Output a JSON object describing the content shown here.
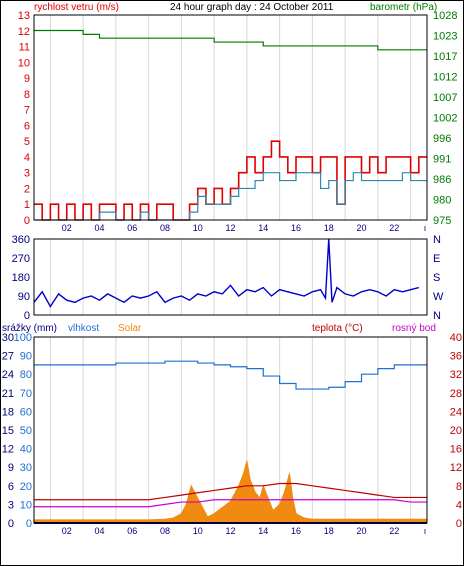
{
  "title": "24 hour graph day : 24 October 2011",
  "colors": {
    "wind": "#e00000",
    "gust": "#2a8ab0",
    "pressure": "#007a00",
    "direction": "#0000cc",
    "humidity": "#1f6fd0",
    "solar": "#f08a10",
    "temperature": "#c00000",
    "dewpoint": "#cc00cc",
    "rain": "#000080"
  },
  "chart_data": [
    {
      "type": "line",
      "title": "24 hour graph day : 24 October 2011",
      "ylabel_left": "rychlost vetru (m/s)",
      "ylabel_right": "barometr (hPa)",
      "x_tick_labels": [
        "02",
        "04",
        "06",
        "08",
        "10",
        "12",
        "14",
        "16",
        "18",
        "20",
        "22"
      ],
      "xlim": [
        0,
        24
      ],
      "ylim_left": [
        0,
        13
      ],
      "ylim_right": [
        975,
        1028
      ],
      "y_ticks_left": [
        "0",
        "1",
        "2",
        "3",
        "4",
        "5",
        "6",
        "7",
        "8",
        "9",
        "10",
        "11",
        "12",
        "13"
      ],
      "y_ticks_right": [
        "975",
        "980",
        "986",
        "991",
        "996",
        "1002",
        "1007",
        "1012",
        "1017",
        "1023",
        "1028"
      ],
      "series": [
        {
          "role": "wind",
          "axis": "left",
          "x": [
            0.0,
            0.5,
            1.0,
            1.5,
            2.0,
            2.5,
            3.0,
            3.5,
            4.0,
            4.5,
            5.0,
            5.5,
            6.0,
            6.5,
            7.0,
            7.5,
            8.0,
            8.5,
            9.0,
            9.5,
            10.0,
            10.5,
            11.0,
            11.5,
            12.0,
            12.5,
            13.0,
            13.5,
            14.0,
            14.5,
            15.0,
            15.5,
            16.0,
            16.5,
            17.0,
            17.5,
            18.0,
            18.5,
            19.0,
            19.5,
            20.0,
            20.5,
            21.0,
            21.5,
            22.0,
            22.5,
            23.0,
            23.5
          ],
          "values": [
            1,
            0,
            1,
            0,
            1,
            0,
            1,
            0,
            1,
            1,
            0,
            1,
            0,
            1,
            0,
            1,
            1,
            0,
            0,
            1,
            2,
            1,
            2,
            1,
            2,
            3,
            4,
            3,
            4,
            5,
            4,
            3,
            4,
            4,
            3,
            4,
            4,
            1,
            4,
            4,
            3,
            4,
            3,
            4,
            4,
            4,
            3,
            4
          ]
        },
        {
          "role": "gust",
          "axis": "left",
          "x": [
            0.0,
            0.5,
            1.0,
            1.5,
            2.0,
            2.5,
            3.0,
            3.5,
            4.0,
            4.5,
            5.0,
            5.5,
            6.0,
            6.5,
            7.0,
            7.5,
            8.0,
            8.5,
            9.0,
            9.5,
            10.0,
            10.5,
            11.0,
            11.5,
            12.0,
            12.5,
            13.0,
            13.5,
            14.0,
            14.5,
            15.0,
            15.5,
            16.0,
            16.5,
            17.0,
            17.5,
            18.0,
            18.5,
            19.0,
            19.5,
            20.0,
            20.5,
            21.0,
            21.5,
            22.0,
            22.5,
            23.0,
            23.5
          ],
          "values": [
            0,
            0,
            0,
            0,
            0,
            0,
            0,
            0,
            0.5,
            0.5,
            0,
            0,
            0,
            0.5,
            0,
            0,
            0,
            0,
            0,
            0.5,
            1.5,
            1,
            1,
            1,
            1.5,
            2,
            2,
            2.5,
            3,
            3,
            2.5,
            2.5,
            3,
            3,
            3,
            2,
            2.5,
            1,
            2.5,
            3,
            2.5,
            2.5,
            2.5,
            2.5,
            2.5,
            3,
            2.5,
            2.5
          ]
        },
        {
          "role": "pressure",
          "axis": "right",
          "x": [
            0,
            1,
            2,
            3,
            4,
            5,
            6,
            7,
            8,
            9,
            10,
            11,
            12,
            13,
            14,
            15,
            16,
            17,
            18,
            19,
            20,
            21,
            22,
            23,
            24
          ],
          "values": [
            1024,
            1024,
            1024,
            1023,
            1022,
            1022,
            1022,
            1022,
            1022,
            1022,
            1022,
            1021,
            1021,
            1021,
            1020,
            1020,
            1020,
            1020,
            1020,
            1020,
            1020,
            1019,
            1019,
            1019,
            1019
          ]
        }
      ]
    },
    {
      "type": "line",
      "x_tick_labels": [],
      "xlim": [
        0,
        24
      ],
      "ylim": [
        0,
        360
      ],
      "y_ticks_left": [
        "0",
        "90",
        "180",
        "270",
        "360"
      ],
      "y_ticks_right": [
        "N",
        "E",
        "S",
        "W",
        "N"
      ],
      "series": [
        {
          "role": "direction",
          "x": [
            0.0,
            0.5,
            1.0,
            1.5,
            2.0,
            2.5,
            3.0,
            3.5,
            4.0,
            4.5,
            5.0,
            5.5,
            6.0,
            6.5,
            7.0,
            7.5,
            8.0,
            8.5,
            9.0,
            9.5,
            10.0,
            10.5,
            11.0,
            11.5,
            12.0,
            12.5,
            13.0,
            13.5,
            14.0,
            14.5,
            15.0,
            15.5,
            16.0,
            16.5,
            17.0,
            17.5,
            17.8,
            18.0,
            18.2,
            18.5,
            19.0,
            19.5,
            20.0,
            20.5,
            21.0,
            21.5,
            22.0,
            22.5,
            23.0,
            23.5
          ],
          "values": [
            60,
            110,
            40,
            100,
            70,
            60,
            80,
            90,
            70,
            100,
            80,
            60,
            90,
            80,
            90,
            110,
            60,
            80,
            90,
            70,
            100,
            90,
            110,
            100,
            140,
            90,
            120,
            110,
            130,
            90,
            120,
            110,
            100,
            90,
            110,
            120,
            80,
            360,
            60,
            130,
            100,
            90,
            110,
            120,
            110,
            90,
            120,
            110,
            120,
            130
          ]
        }
      ]
    },
    {
      "type": "line",
      "x_tick_labels": [
        "02",
        "04",
        "06",
        "08",
        "10",
        "12",
        "14",
        "16",
        "18",
        "20",
        "22"
      ],
      "xlim": [
        0,
        24
      ],
      "legend": [
        "srážky (mm)",
        "vlhkost",
        "Solar",
        "teplota (°C)",
        "rosný bod"
      ],
      "y_ticks_rain": [
        "0",
        "3",
        "6",
        "9",
        "12",
        "15",
        "18",
        "21",
        "24",
        "27",
        "30"
      ],
      "y_ticks_humidity": [
        "0",
        "10",
        "20",
        "30",
        "40",
        "50",
        "60",
        "70",
        "80",
        "90",
        "100"
      ],
      "y_ticks_temperature": [
        "0",
        "4",
        "8",
        "12",
        "16",
        "20",
        "24",
        "28",
        "32",
        "36",
        "40"
      ],
      "ylim_humidity": [
        0,
        100
      ],
      "ylim_temperature": [
        0,
        40
      ],
      "series": [
        {
          "role": "humidity",
          "name": "vlhkost",
          "axis": "humidity",
          "x": [
            0,
            1,
            2,
            3,
            4,
            5,
            6,
            7,
            8,
            9,
            10,
            11,
            12,
            13,
            14,
            15,
            16,
            17,
            18,
            19,
            20,
            21,
            22,
            23,
            24
          ],
          "values": [
            85,
            85,
            85,
            85,
            85,
            86,
            86,
            86,
            87,
            87,
            86,
            85,
            84,
            83,
            79,
            75,
            72,
            72,
            73,
            76,
            80,
            83,
            85,
            85,
            85
          ]
        },
        {
          "role": "solar",
          "name": "Solar",
          "axis": "rain",
          "x": [
            0,
            1,
            2,
            3,
            4,
            5,
            6,
            7,
            8,
            8.5,
            9,
            9.3,
            9.6,
            10,
            10.3,
            10.6,
            11,
            11.5,
            12,
            12.5,
            12.8,
            13,
            13.2,
            13.5,
            13.8,
            14,
            14.3,
            14.6,
            15,
            15.3,
            15.6,
            15.8,
            16,
            16.5,
            17,
            18,
            19,
            20,
            21,
            22,
            23,
            24
          ],
          "values": [
            0.5,
            0.5,
            0.5,
            0.5,
            0.5,
            0.5,
            0.5,
            0.5,
            0.6,
            0.8,
            1.5,
            3,
            6,
            4,
            2.5,
            1,
            1.5,
            2.5,
            3.5,
            6,
            8,
            10,
            7,
            5,
            4,
            6,
            4,
            2,
            3,
            5,
            8,
            4,
            1.5,
            0.8,
            0.6,
            0.6,
            0.6,
            0.6,
            0.6,
            0.6,
            0.6,
            0.6
          ]
        },
        {
          "role": "temperature",
          "name": "teplota (°C)",
          "axis": "temperature",
          "x": [
            0,
            1,
            2,
            3,
            4,
            5,
            6,
            7,
            8,
            9,
            10,
            11,
            12,
            13,
            14,
            15,
            16,
            17,
            18,
            19,
            20,
            21,
            22,
            23,
            24
          ],
          "values": [
            5,
            5,
            5,
            5,
            5,
            5,
            5,
            5,
            5.5,
            6,
            6.5,
            7,
            7.5,
            8,
            8,
            8.5,
            8.5,
            8,
            7.5,
            7,
            6.5,
            6,
            5.5,
            5.5,
            5.5
          ]
        },
        {
          "role": "dewpoint",
          "name": "rosný bod",
          "axis": "temperature",
          "x": [
            0,
            1,
            2,
            3,
            4,
            5,
            6,
            7,
            8,
            9,
            10,
            11,
            12,
            13,
            14,
            15,
            16,
            17,
            18,
            19,
            20,
            21,
            22,
            23,
            24
          ],
          "values": [
            3.5,
            3.5,
            3.5,
            3.5,
            3.5,
            3.5,
            3.5,
            3.5,
            4,
            4.5,
            4.5,
            5,
            5,
            5,
            5,
            5,
            5,
            5,
            5,
            5,
            5,
            5,
            5,
            4.5,
            4.5
          ]
        },
        {
          "role": "rain",
          "name": "srážky (mm)",
          "axis": "rain",
          "x": [
            0,
            24
          ],
          "values": [
            0,
            0
          ]
        }
      ]
    }
  ]
}
